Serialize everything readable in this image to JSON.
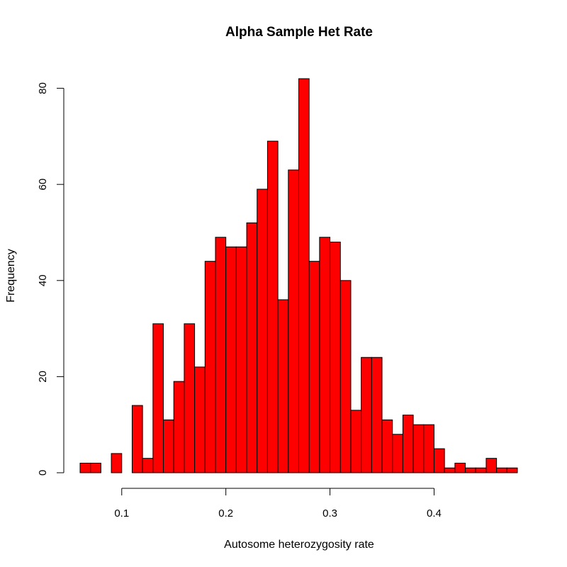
{
  "chart_data": {
    "type": "bar",
    "title": "Alpha Sample Het Rate",
    "xlabel": "Autosome heterozygosity rate",
    "ylabel": "Frequency",
    "bar_color": "#FF0000",
    "bin_width": 0.01,
    "bin_start": 0.06,
    "values": [
      2,
      2,
      0,
      4,
      0,
      14,
      3,
      31,
      11,
      19,
      31,
      22,
      44,
      49,
      47,
      47,
      52,
      59,
      69,
      36,
      63,
      82,
      44,
      49,
      48,
      40,
      13,
      24,
      24,
      11,
      8,
      12,
      10,
      10,
      5,
      1,
      2,
      1,
      1,
      3,
      1,
      1
    ],
    "xlim": [
      0.06,
      0.48
    ],
    "ylim": [
      0,
      82
    ],
    "x_ticks": [
      {
        "value": 0.1,
        "label": "0.1"
      },
      {
        "value": 0.2,
        "label": "0.2"
      },
      {
        "value": 0.3,
        "label": "0.3"
      },
      {
        "value": 0.4,
        "label": "0.4"
      }
    ],
    "y_ticks": [
      {
        "value": 0,
        "label": "0"
      },
      {
        "value": 20,
        "label": "20"
      },
      {
        "value": 40,
        "label": "40"
      },
      {
        "value": 60,
        "label": "60"
      },
      {
        "value": 80,
        "label": "80"
      }
    ],
    "grid": false,
    "legend": "none"
  }
}
